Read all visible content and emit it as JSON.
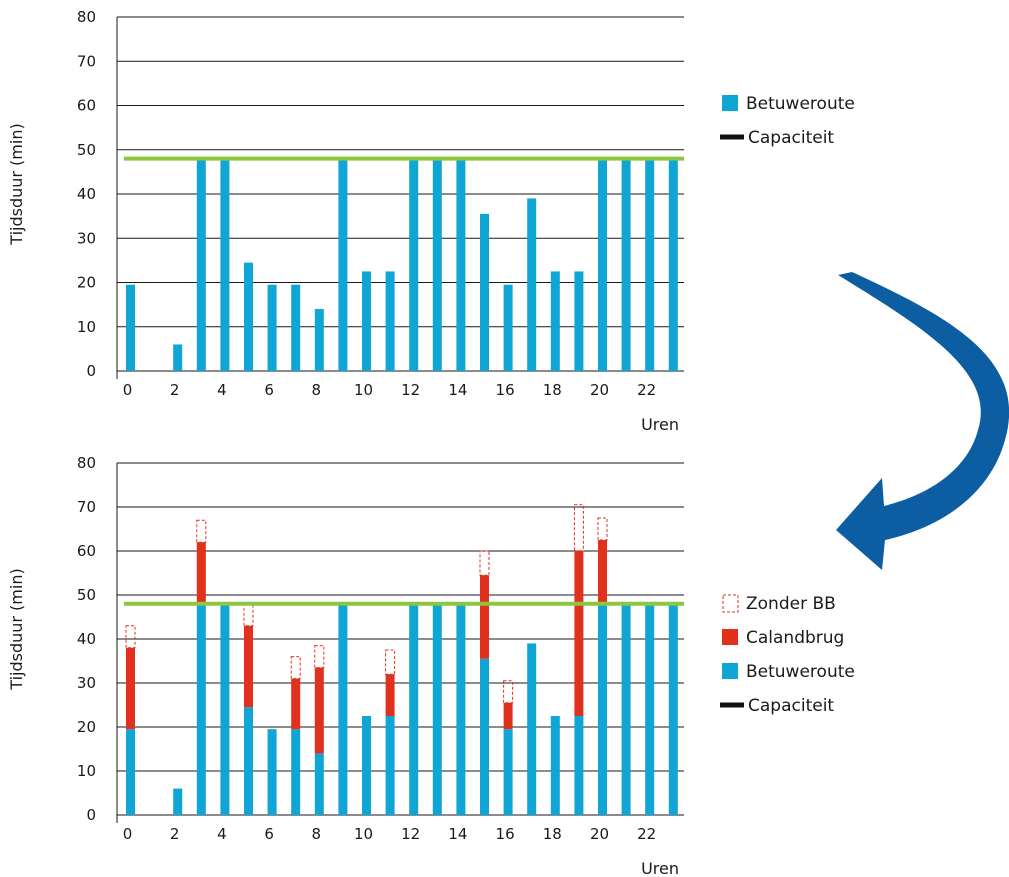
{
  "colors": {
    "betuweroute": "#0fa5d4",
    "calandbrug": "#e0301e",
    "zonder_bb": "#e0301e",
    "capaciteit_line": "#8cc63f",
    "capaciteit_legend": "#111111",
    "arrow": "#0d5da3",
    "grid": "#1a1a1a"
  },
  "icons": {
    "arrow": "curved-arrow-icon"
  },
  "chart_data": [
    {
      "type": "bar",
      "ylabel": "Tijdsduur (min)",
      "xlabel": "Uren",
      "ylim": [
        0,
        80
      ],
      "yticks": [
        0,
        10,
        20,
        30,
        40,
        50,
        60,
        70,
        80
      ],
      "xticks": [
        0,
        2,
        4,
        6,
        8,
        10,
        12,
        14,
        16,
        18,
        20,
        22
      ],
      "x": [
        0,
        1,
        2,
        3,
        4,
        5,
        6,
        7,
        8,
        9,
        10,
        11,
        12,
        13,
        14,
        15,
        16,
        17,
        18,
        19,
        20,
        21,
        22,
        23
      ],
      "capacity": 48,
      "series": [
        {
          "name": "Betuweroute",
          "values": [
            19.5,
            0,
            6,
            48,
            48,
            24.5,
            19.5,
            19.5,
            14,
            48,
            22.5,
            22.5,
            48,
            48,
            48,
            35.5,
            19.5,
            39,
            22.5,
            22.5,
            48,
            48,
            48,
            48
          ]
        }
      ],
      "legend": [
        {
          "label": "Betuweroute",
          "kind": "box"
        },
        {
          "label": "Capaciteit",
          "kind": "line"
        }
      ]
    },
    {
      "type": "bar",
      "ylabel": "Tijdsduur (min)",
      "xlabel": "Uren",
      "ylim": [
        0,
        80
      ],
      "yticks": [
        0,
        10,
        20,
        30,
        40,
        50,
        60,
        70,
        80
      ],
      "xticks": [
        0,
        2,
        4,
        6,
        8,
        10,
        12,
        14,
        16,
        18,
        20,
        22
      ],
      "x": [
        0,
        1,
        2,
        3,
        4,
        5,
        6,
        7,
        8,
        9,
        10,
        11,
        12,
        13,
        14,
        15,
        16,
        17,
        18,
        19,
        20,
        21,
        22,
        23
      ],
      "capacity": 48,
      "series": [
        {
          "name": "Betuweroute",
          "values": [
            19.5,
            0,
            6,
            48,
            48,
            24.5,
            19.5,
            19.5,
            14,
            48,
            22.5,
            22.5,
            48,
            48,
            48,
            35.5,
            19.5,
            39,
            22.5,
            22.5,
            48,
            48,
            48,
            48
          ]
        },
        {
          "name": "Calandbrug",
          "values": [
            18.5,
            0,
            0,
            14,
            0,
            18.5,
            0,
            11.5,
            19.5,
            0,
            0,
            9.5,
            0,
            0,
            0,
            19,
            6,
            0,
            0,
            37.5,
            14.5,
            0,
            0,
            0
          ]
        },
        {
          "name": "Zonder BB",
          "values": [
            5,
            0,
            0,
            5,
            0,
            5,
            0,
            5,
            5,
            0,
            0,
            5.5,
            0,
            0,
            0,
            5.5,
            5,
            0,
            0,
            10.5,
            5,
            0,
            0,
            0
          ]
        }
      ],
      "legend": [
        {
          "label": "Zonder BB",
          "kind": "dashed-box"
        },
        {
          "label": "Calandbrug",
          "kind": "box"
        },
        {
          "label": "Betuweroute",
          "kind": "box"
        },
        {
          "label": "Capaciteit",
          "kind": "line"
        }
      ]
    }
  ]
}
